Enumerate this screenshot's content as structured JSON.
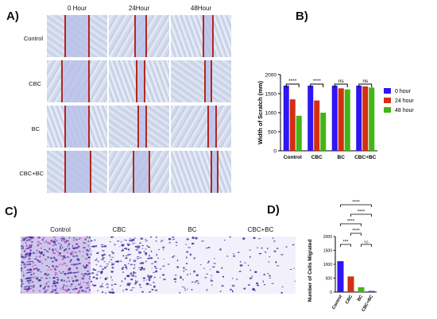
{
  "panels": {
    "a": "A)",
    "b": "B)",
    "c": "C)",
    "d": "D)"
  },
  "panel_a": {
    "columns": [
      "0 Hour",
      "24Hour",
      "48Hour"
    ],
    "rows": [
      "Control",
      "CBC",
      "BC",
      "CBC+BC"
    ]
  },
  "panel_c": {
    "labels": [
      "Control",
      "CBC",
      "BC",
      "CBC+BC"
    ]
  },
  "colors": {
    "blue": "#2f16f2",
    "red": "#d32f12",
    "green": "#43b516",
    "purple": "#6a2ed6",
    "stain": "#3c2d9e"
  },
  "chart_data": [
    {
      "type": "bar",
      "ylabel": "Width of Scratch (mm)",
      "ylim": [
        0,
        2000
      ],
      "yticks": [
        "0",
        "500",
        "1000",
        "1500",
        "2000"
      ],
      "categories": [
        "Control",
        "CBC",
        "BC",
        "CBC+BC"
      ],
      "series": [
        {
          "name": "0 hour",
          "values": [
            1710,
            1710,
            1710,
            1710
          ]
        },
        {
          "name": "24 hour",
          "values": [
            1350,
            1320,
            1640,
            1690
          ]
        },
        {
          "name": "48 hour",
          "values": [
            920,
            1000,
            1610,
            1660
          ]
        }
      ],
      "significance": [
        "****",
        "****",
        "ns",
        "ns"
      ],
      "legend": "right"
    },
    {
      "type": "bar",
      "ylabel": "Number of Cells Migrated",
      "ylim": [
        0,
        2000
      ],
      "yticks": [
        "0",
        "500",
        "1000",
        "1500",
        "2000"
      ],
      "categories": [
        "Control",
        "CBC",
        "BC",
        "CBC+BC"
      ],
      "values": [
        1110,
        560,
        170,
        40
      ],
      "comparisons": [
        "****",
        "****",
        "****",
        "****",
        "***",
        "ns"
      ]
    }
  ]
}
